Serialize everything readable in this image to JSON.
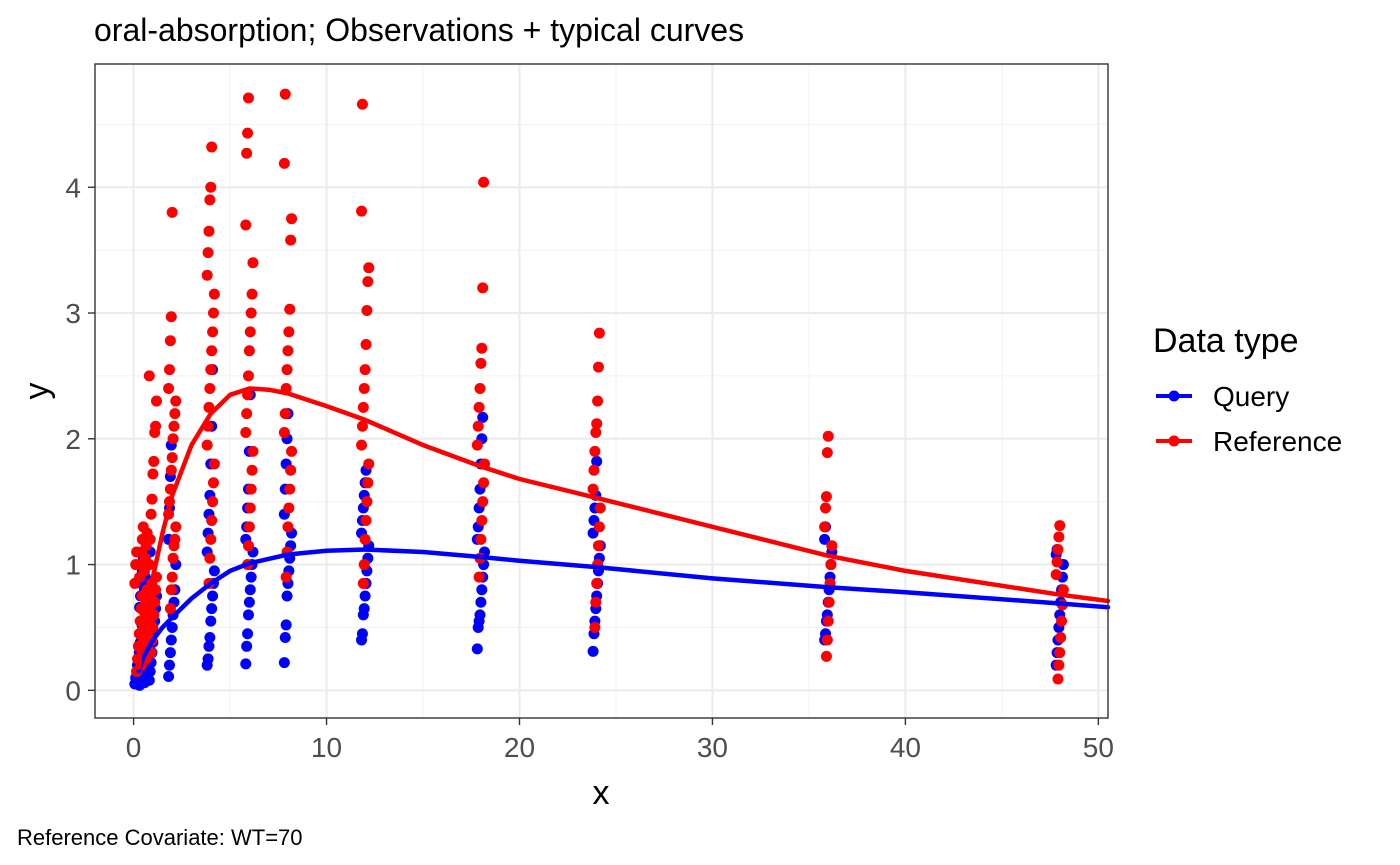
{
  "chart_data": {
    "type": "scatter",
    "title": "oral-absorption; Observations + typical curves",
    "xlabel": "x",
    "ylabel": "y",
    "xlim": [
      -2,
      50.5
    ],
    "ylim": [
      -0.22,
      4.98
    ],
    "x_ticks": [
      0,
      10,
      20,
      30,
      40,
      50
    ],
    "y_ticks": [
      0,
      1,
      2,
      3,
      4
    ],
    "x_tick_labels": [
      "0",
      "10",
      "20",
      "30",
      "40",
      "50"
    ],
    "y_tick_labels": [
      "0",
      "1",
      "2",
      "3",
      "4"
    ],
    "grid": true,
    "legend": {
      "title": "Data type",
      "position": "right",
      "entries": [
        "Query",
        "Reference"
      ]
    },
    "caption": "Reference Covariate: WT=70",
    "sampling_times": [
      0.25,
      0.5,
      0.75,
      1,
      2,
      4,
      6,
      8,
      12,
      18,
      24,
      36,
      48
    ],
    "series": [
      {
        "name": "Query",
        "color": "#0000ff",
        "observations": [
          {
            "x": 0.25,
            "y": [
              0.05,
              0.1,
              0.15,
              0.2,
              0.25,
              0.3,
              0.38,
              0.45,
              0.52
            ]
          },
          {
            "x": 0.5,
            "y": [
              0.04,
              0.08,
              0.14,
              0.2,
              0.27,
              0.35,
              0.42,
              0.5,
              0.58,
              0.66,
              0.75,
              0.85,
              0.95,
              1.05
            ]
          },
          {
            "x": 0.75,
            "y": [
              0.06,
              0.12,
              0.18,
              0.25,
              0.32,
              0.4,
              0.5,
              0.6,
              0.7,
              0.8,
              0.9,
              1.0
            ]
          },
          {
            "x": 1,
            "y": [
              0.08,
              0.15,
              0.22,
              0.3,
              0.38,
              0.46,
              0.55,
              0.65,
              0.75,
              0.85,
              1.1
            ]
          },
          {
            "x": 2,
            "y": [
              0.11,
              0.2,
              0.3,
              0.4,
              0.5,
              0.6,
              0.7,
              0.8,
              1.0,
              1.2,
              1.45,
              1.7,
              1.95
            ]
          },
          {
            "x": 4,
            "y": [
              0.2,
              0.25,
              0.35,
              0.42,
              0.55,
              0.65,
              0.75,
              0.85,
              0.95,
              1.1,
              1.25,
              1.4,
              1.55,
              1.8,
              2.1,
              2.55
            ]
          },
          {
            "x": 6,
            "y": [
              0.21,
              0.35,
              0.45,
              0.6,
              0.7,
              0.8,
              0.9,
              1.0,
              1.1,
              1.2,
              1.3,
              1.45,
              1.6,
              1.9,
              2.35
            ]
          },
          {
            "x": 8,
            "y": [
              0.22,
              0.42,
              0.52,
              0.75,
              0.85,
              0.95,
              1.05,
              1.15,
              1.25,
              1.4,
              1.6,
              1.8,
              2.0,
              2.2
            ]
          },
          {
            "x": 12,
            "y": [
              0.4,
              0.45,
              0.6,
              0.65,
              0.75,
              0.85,
              0.95,
              1.05,
              1.15,
              1.25,
              1.35,
              1.45,
              1.55,
              1.65,
              1.75
            ]
          },
          {
            "x": 18,
            "y": [
              0.33,
              0.5,
              0.55,
              0.6,
              0.7,
              0.8,
              0.9,
              1.0,
              1.1,
              1.2,
              1.3,
              1.45,
              1.6,
              1.8,
              2.0,
              2.17
            ]
          },
          {
            "x": 24,
            "y": [
              0.31,
              0.45,
              0.55,
              0.65,
              0.75,
              0.85,
              0.95,
              1.05,
              1.15,
              1.25,
              1.35,
              1.45,
              1.55,
              1.82
            ]
          },
          {
            "x": 36,
            "y": [
              0.4,
              0.45,
              0.55,
              0.6,
              0.7,
              0.8,
              0.9,
              1.0,
              1.1,
              1.2,
              1.3
            ]
          },
          {
            "x": 48,
            "y": [
              0.2,
              0.3,
              0.4,
              0.5,
              0.6,
              0.7,
              0.8,
              0.9,
              1.0,
              1.08,
              1.12
            ]
          }
        ],
        "curve": {
          "x": [
            0.25,
            0.5,
            1,
            1.5,
            2,
            3,
            4,
            5,
            6,
            8,
            10,
            12,
            15,
            18,
            20,
            24,
            30,
            36,
            40,
            48,
            50.5
          ],
          "y": [
            0.15,
            0.26,
            0.4,
            0.5,
            0.58,
            0.73,
            0.85,
            0.95,
            1.01,
            1.08,
            1.11,
            1.12,
            1.1,
            1.06,
            1.03,
            0.98,
            0.89,
            0.82,
            0.78,
            0.69,
            0.66
          ]
        }
      },
      {
        "name": "Reference",
        "color": "#ff0000",
        "observations": [
          {
            "x": 0.25,
            "y": [
              0.15,
              0.25,
              0.35,
              0.45,
              0.55,
              0.65,
              0.75,
              0.85,
              1.0,
              1.1
            ]
          },
          {
            "x": 0.5,
            "y": [
              0.2,
              0.3,
              0.4,
              0.5,
              0.6,
              0.7,
              0.8,
              0.9,
              1.0,
              1.1,
              1.2,
              1.3
            ]
          },
          {
            "x": 0.75,
            "y": [
              0.25,
              0.35,
              0.45,
              0.55,
              0.65,
              0.75,
              0.85,
              0.95,
              1.05,
              1.15,
              1.25
            ]
          },
          {
            "x": 1,
            "y": [
              0.3,
              0.4,
              0.5,
              0.6,
              0.7,
              0.8,
              0.9,
              1.0,
              1.2,
              1.4,
              1.52,
              1.72,
              1.82,
              2.05,
              2.1,
              2.3,
              2.5
            ]
          },
          {
            "x": 2,
            "y": [
              0.65,
              0.8,
              0.9,
              1.05,
              1.15,
              1.2,
              1.3,
              1.4,
              1.5,
              1.6,
              1.75,
              1.85,
              2.0,
              2.1,
              2.2,
              2.3,
              2.4,
              2.55,
              2.78,
              2.97,
              3.8
            ]
          },
          {
            "x": 4,
            "y": [
              0.85,
              1.05,
              1.2,
              1.35,
              1.5,
              1.65,
              1.8,
              1.95,
              2.1,
              2.25,
              2.4,
              2.55,
              2.7,
              2.85,
              3.0,
              3.15,
              3.3,
              3.48,
              3.65,
              3.9,
              4.0,
              4.32
            ]
          },
          {
            "x": 6,
            "y": [
              1.0,
              1.15,
              1.3,
              1.45,
              1.6,
              1.75,
              1.9,
              2.05,
              2.2,
              2.35,
              2.5,
              2.7,
              2.85,
              3.0,
              3.15,
              3.4,
              3.7,
              4.27,
              4.43,
              4.71
            ]
          },
          {
            "x": 8,
            "y": [
              0.9,
              1.1,
              1.3,
              1.45,
              1.6,
              1.75,
              1.9,
              2.05,
              2.2,
              2.4,
              2.55,
              2.7,
              2.85,
              3.03,
              3.58,
              3.75,
              4.19,
              4.74
            ]
          },
          {
            "x": 12,
            "y": [
              0.85,
              1.0,
              1.2,
              1.35,
              1.5,
              1.65,
              1.8,
              1.95,
              2.1,
              2.25,
              2.4,
              2.55,
              2.75,
              3.02,
              3.25,
              3.36,
              3.81,
              4.66
            ]
          },
          {
            "x": 18,
            "y": [
              0.9,
              1.05,
              1.2,
              1.35,
              1.5,
              1.65,
              1.8,
              1.95,
              2.1,
              2.25,
              2.4,
              2.6,
              2.72,
              3.2,
              4.04
            ]
          },
          {
            "x": 24,
            "y": [
              0.5,
              0.7,
              0.85,
              1.0,
              1.15,
              1.3,
              1.45,
              1.6,
              1.75,
              1.9,
              2.05,
              2.12,
              2.3,
              2.57,
              2.84
            ]
          },
          {
            "x": 36,
            "y": [
              0.27,
              0.4,
              0.55,
              0.7,
              0.85,
              1.0,
              1.15,
              1.3,
              1.45,
              1.54,
              1.89,
              2.02
            ]
          },
          {
            "x": 48,
            "y": [
              0.09,
              0.2,
              0.3,
              0.42,
              0.55,
              0.68,
              0.8,
              0.92,
              1.02,
              1.12,
              1.22,
              1.31
            ]
          }
        ],
        "curve": {
          "x": [
            0.25,
            0.5,
            1,
            1.5,
            2,
            3,
            4,
            5,
            6,
            7,
            8,
            10,
            12,
            15,
            18,
            20,
            24,
            30,
            36,
            40,
            48,
            50.5
          ],
          "y": [
            0.18,
            0.5,
            0.9,
            1.25,
            1.55,
            1.95,
            2.2,
            2.35,
            2.4,
            2.39,
            2.36,
            2.26,
            2.15,
            1.95,
            1.78,
            1.68,
            1.53,
            1.3,
            1.07,
            0.95,
            0.76,
            0.71
          ]
        }
      }
    ]
  }
}
